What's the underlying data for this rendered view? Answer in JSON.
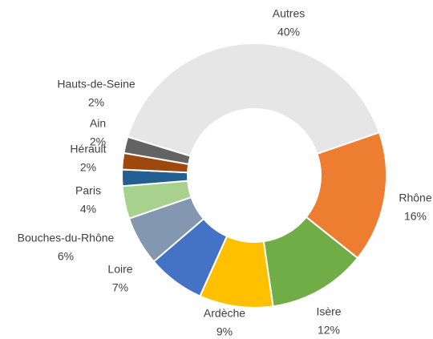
{
  "chart_data": {
    "type": "pie",
    "categories": [
      "Autres",
      "Rhône",
      "Isère",
      "Ardèche",
      "Loire",
      "Bouches-du-Rhône",
      "Paris",
      "Hérault",
      "Ain",
      "Hauts-de-Seine"
    ],
    "values": [
      40,
      16,
      12,
      9,
      7,
      6,
      4,
      2,
      2,
      2
    ],
    "value_labels": [
      "40%",
      "16%",
      "12%",
      "9%",
      "7%",
      "6%",
      "4%",
      "2%",
      "2%",
      "2%"
    ],
    "colors": [
      "#e7e6e6",
      "#ed7d31",
      "#70ad47",
      "#ffc000",
      "#4472c4",
      "#8497b0",
      "#a9d18e",
      "#255e91",
      "#9e480e",
      "#636363"
    ]
  }
}
